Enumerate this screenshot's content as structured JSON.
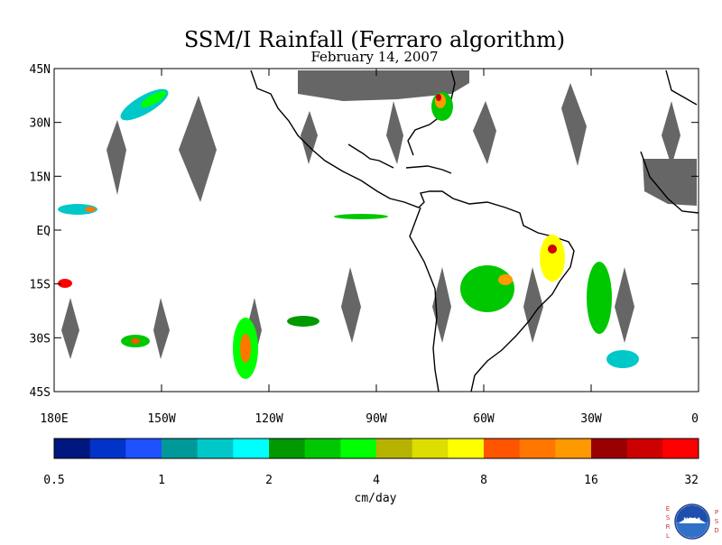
{
  "title": "SSM/I Rainfall (Ferraro algorithm)",
  "subtitle": "February 14, 2007",
  "map": {
    "lon_range": [
      -180,
      0
    ],
    "lat_range": [
      -45,
      45
    ],
    "lat_labels": [
      "45N",
      "30N",
      "15N",
      "EQ",
      "15S",
      "30S",
      "45S"
    ],
    "lon_labels": [
      "180E",
      "150W",
      "120W",
      "90W",
      "60W",
      "30W",
      "0"
    ],
    "land_color": "#000000",
    "no_data_color": "#666666"
  },
  "colorbar": {
    "unit_label": "cm/day",
    "tick_labels": [
      "0.5",
      "1",
      "2",
      "4",
      "8",
      "16",
      "32"
    ],
    "colors": [
      "#00177f",
      "#0233c8",
      "#1f51ff",
      "#00999a",
      "#00c8c8",
      "#00ffff",
      "#009900",
      "#00c800",
      "#00ff00",
      "#b5b300",
      "#dddd00",
      "#ffff00",
      "#ff5500",
      "#ff7700",
      "#ff9900",
      "#990000",
      "#cc0000",
      "#ff0000"
    ]
  },
  "logo": {
    "left_letters": "ESRL",
    "right_letters": "PSD",
    "emblem_text": "NOAA"
  }
}
